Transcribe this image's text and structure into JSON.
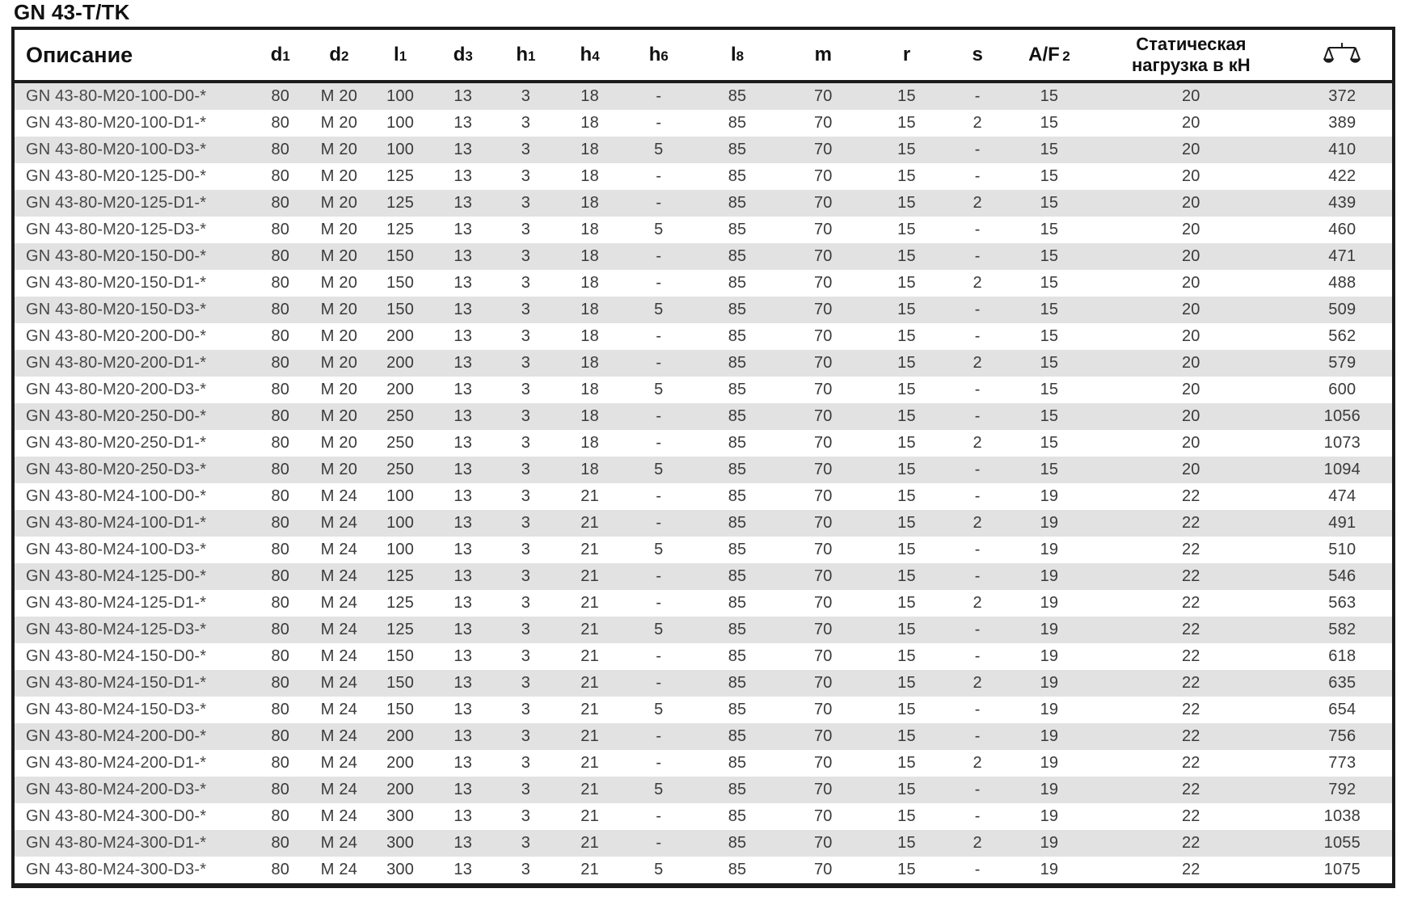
{
  "page_title": "GN 43-T/TK",
  "colors": {
    "row_alt": "#e2e2e2",
    "border": "#1c1c1c"
  },
  "table": {
    "description_header": "Описание",
    "dim_columns": [
      {
        "main": "d",
        "sub": "1"
      },
      {
        "main": "d",
        "sub": "2"
      },
      {
        "main": "l",
        "sub": "1"
      },
      {
        "main": "d",
        "sub": "3"
      },
      {
        "main": "h",
        "sub": "1"
      },
      {
        "main": "h",
        "sub": "4"
      },
      {
        "main": "h",
        "sub": "6"
      },
      {
        "main": "l",
        "sub": "8"
      },
      {
        "main": "m",
        "sub": ""
      },
      {
        "main": "r",
        "sub": ""
      },
      {
        "main": "s",
        "sub": ""
      },
      {
        "main": "A/F",
        "sub": "2"
      }
    ],
    "static_load_header_line1": "Статическая",
    "static_load_header_line2": "нагрузка в кН",
    "weight_column_icon": "balance-scale-icon",
    "rows": [
      [
        "GN 43-80-M20-100-D0-*",
        "80",
        "M 20",
        "100",
        "13",
        "3",
        "18",
        "-",
        "85",
        "70",
        "15",
        "-",
        "15",
        "20",
        "372"
      ],
      [
        "GN 43-80-M20-100-D1-*",
        "80",
        "M 20",
        "100",
        "13",
        "3",
        "18",
        "-",
        "85",
        "70",
        "15",
        "2",
        "15",
        "20",
        "389"
      ],
      [
        "GN 43-80-M20-100-D3-*",
        "80",
        "M 20",
        "100",
        "13",
        "3",
        "18",
        "5",
        "85",
        "70",
        "15",
        "-",
        "15",
        "20",
        "410"
      ],
      [
        "GN 43-80-M20-125-D0-*",
        "80",
        "M 20",
        "125",
        "13",
        "3",
        "18",
        "-",
        "85",
        "70",
        "15",
        "-",
        "15",
        "20",
        "422"
      ],
      [
        "GN 43-80-M20-125-D1-*",
        "80",
        "M 20",
        "125",
        "13",
        "3",
        "18",
        "-",
        "85",
        "70",
        "15",
        "2",
        "15",
        "20",
        "439"
      ],
      [
        "GN 43-80-M20-125-D3-*",
        "80",
        "M 20",
        "125",
        "13",
        "3",
        "18",
        "5",
        "85",
        "70",
        "15",
        "-",
        "15",
        "20",
        "460"
      ],
      [
        "GN 43-80-M20-150-D0-*",
        "80",
        "M 20",
        "150",
        "13",
        "3",
        "18",
        "-",
        "85",
        "70",
        "15",
        "-",
        "15",
        "20",
        "471"
      ],
      [
        "GN 43-80-M20-150-D1-*",
        "80",
        "M 20",
        "150",
        "13",
        "3",
        "18",
        "-",
        "85",
        "70",
        "15",
        "2",
        "15",
        "20",
        "488"
      ],
      [
        "GN 43-80-M20-150-D3-*",
        "80",
        "M 20",
        "150",
        "13",
        "3",
        "18",
        "5",
        "85",
        "70",
        "15",
        "-",
        "15",
        "20",
        "509"
      ],
      [
        "GN 43-80-M20-200-D0-*",
        "80",
        "M 20",
        "200",
        "13",
        "3",
        "18",
        "-",
        "85",
        "70",
        "15",
        "-",
        "15",
        "20",
        "562"
      ],
      [
        "GN 43-80-M20-200-D1-*",
        "80",
        "M 20",
        "200",
        "13",
        "3",
        "18",
        "-",
        "85",
        "70",
        "15",
        "2",
        "15",
        "20",
        "579"
      ],
      [
        "GN 43-80-M20-200-D3-*",
        "80",
        "M 20",
        "200",
        "13",
        "3",
        "18",
        "5",
        "85",
        "70",
        "15",
        "-",
        "15",
        "20",
        "600"
      ],
      [
        "GN 43-80-M20-250-D0-*",
        "80",
        "M 20",
        "250",
        "13",
        "3",
        "18",
        "-",
        "85",
        "70",
        "15",
        "-",
        "15",
        "20",
        "1056"
      ],
      [
        "GN 43-80-M20-250-D1-*",
        "80",
        "M 20",
        "250",
        "13",
        "3",
        "18",
        "-",
        "85",
        "70",
        "15",
        "2",
        "15",
        "20",
        "1073"
      ],
      [
        "GN 43-80-M20-250-D3-*",
        "80",
        "M 20",
        "250",
        "13",
        "3",
        "18",
        "5",
        "85",
        "70",
        "15",
        "-",
        "15",
        "20",
        "1094"
      ],
      [
        "GN 43-80-M24-100-D0-*",
        "80",
        "M 24",
        "100",
        "13",
        "3",
        "21",
        "-",
        "85",
        "70",
        "15",
        "-",
        "19",
        "22",
        "474"
      ],
      [
        "GN 43-80-M24-100-D1-*",
        "80",
        "M 24",
        "100",
        "13",
        "3",
        "21",
        "-",
        "85",
        "70",
        "15",
        "2",
        "19",
        "22",
        "491"
      ],
      [
        "GN 43-80-M24-100-D3-*",
        "80",
        "M 24",
        "100",
        "13",
        "3",
        "21",
        "5",
        "85",
        "70",
        "15",
        "-",
        "19",
        "22",
        "510"
      ],
      [
        "GN 43-80-M24-125-D0-*",
        "80",
        "M 24",
        "125",
        "13",
        "3",
        "21",
        "-",
        "85",
        "70",
        "15",
        "-",
        "19",
        "22",
        "546"
      ],
      [
        "GN 43-80-M24-125-D1-*",
        "80",
        "M 24",
        "125",
        "13",
        "3",
        "21",
        "-",
        "85",
        "70",
        "15",
        "2",
        "19",
        "22",
        "563"
      ],
      [
        "GN 43-80-M24-125-D3-*",
        "80",
        "M 24",
        "125",
        "13",
        "3",
        "21",
        "5",
        "85",
        "70",
        "15",
        "-",
        "19",
        "22",
        "582"
      ],
      [
        "GN 43-80-M24-150-D0-*",
        "80",
        "M 24",
        "150",
        "13",
        "3",
        "21",
        "-",
        "85",
        "70",
        "15",
        "-",
        "19",
        "22",
        "618"
      ],
      [
        "GN 43-80-M24-150-D1-*",
        "80",
        "M 24",
        "150",
        "13",
        "3",
        "21",
        "-",
        "85",
        "70",
        "15",
        "2",
        "19",
        "22",
        "635"
      ],
      [
        "GN 43-80-M24-150-D3-*",
        "80",
        "M 24",
        "150",
        "13",
        "3",
        "21",
        "5",
        "85",
        "70",
        "15",
        "-",
        "19",
        "22",
        "654"
      ],
      [
        "GN 43-80-M24-200-D0-*",
        "80",
        "M 24",
        "200",
        "13",
        "3",
        "21",
        "-",
        "85",
        "70",
        "15",
        "-",
        "19",
        "22",
        "756"
      ],
      [
        "GN 43-80-M24-200-D1-*",
        "80",
        "M 24",
        "200",
        "13",
        "3",
        "21",
        "-",
        "85",
        "70",
        "15",
        "2",
        "19",
        "22",
        "773"
      ],
      [
        "GN 43-80-M24-200-D3-*",
        "80",
        "M 24",
        "200",
        "13",
        "3",
        "21",
        "5",
        "85",
        "70",
        "15",
        "-",
        "19",
        "22",
        "792"
      ],
      [
        "GN 43-80-M24-300-D0-*",
        "80",
        "M 24",
        "300",
        "13",
        "3",
        "21",
        "-",
        "85",
        "70",
        "15",
        "-",
        "19",
        "22",
        "1038"
      ],
      [
        "GN 43-80-M24-300-D1-*",
        "80",
        "M 24",
        "300",
        "13",
        "3",
        "21",
        "-",
        "85",
        "70",
        "15",
        "2",
        "19",
        "22",
        "1055"
      ],
      [
        "GN 43-80-M24-300-D3-*",
        "80",
        "M 24",
        "300",
        "13",
        "3",
        "21",
        "5",
        "85",
        "70",
        "15",
        "-",
        "19",
        "22",
        "1075"
      ]
    ]
  }
}
